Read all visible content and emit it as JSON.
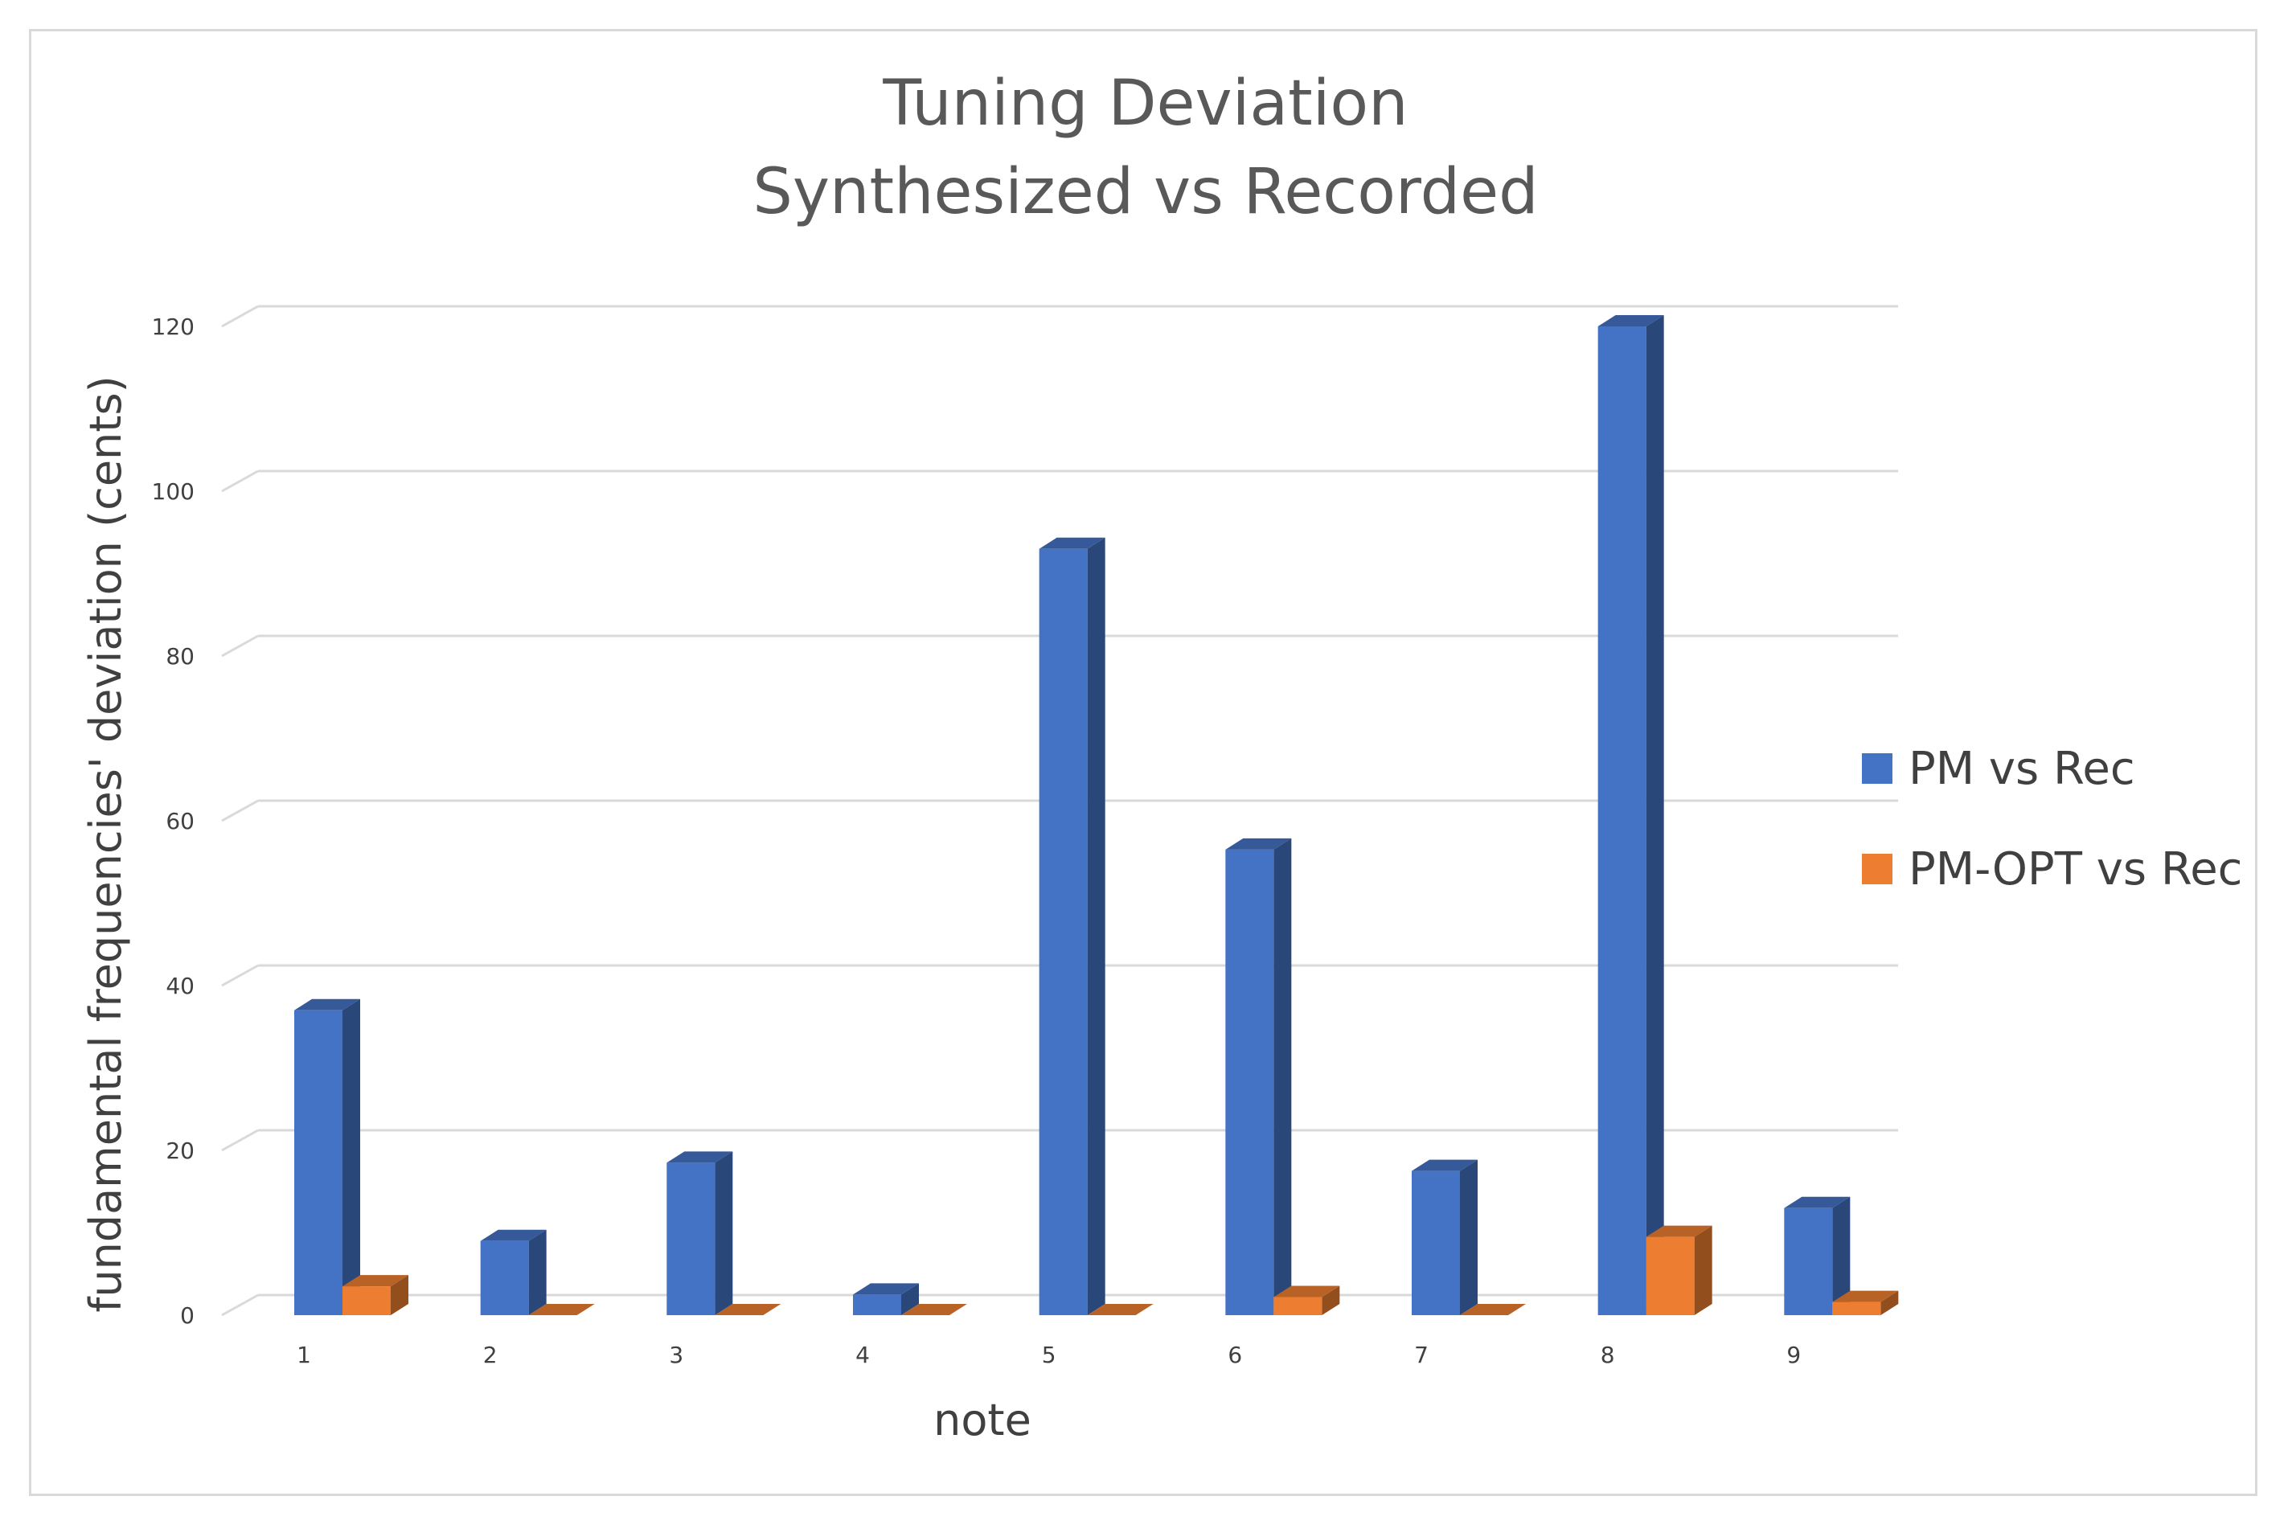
{
  "chart_data": {
    "type": "bar",
    "title": "Tuning Deviation",
    "subtitle": "Synthesized vs Recorded",
    "xlabel": "note",
    "ylabel": "fundamental frequencies' deviation (cents)",
    "categories": [
      "1",
      "2",
      "3",
      "4",
      "5",
      "6",
      "7",
      "8",
      "9"
    ],
    "series": [
      {
        "name": "PM vs Rec",
        "values": [
          37,
          9,
          18.5,
          2.5,
          93,
          56.5,
          17.5,
          120,
          13
        ],
        "color": "#4472C4"
      },
      {
        "name": "PM-OPT vs Rec",
        "values": [
          3.5,
          0,
          0,
          0,
          0,
          2.2,
          0,
          9.5,
          1.6
        ],
        "color": "#ED7D31"
      }
    ],
    "ylim": [
      0,
      120
    ],
    "yticks": [
      "0",
      "20",
      "40",
      "60",
      "80",
      "100",
      "120"
    ],
    "grid": true,
    "legend_position": "right",
    "style": "3d-column"
  }
}
